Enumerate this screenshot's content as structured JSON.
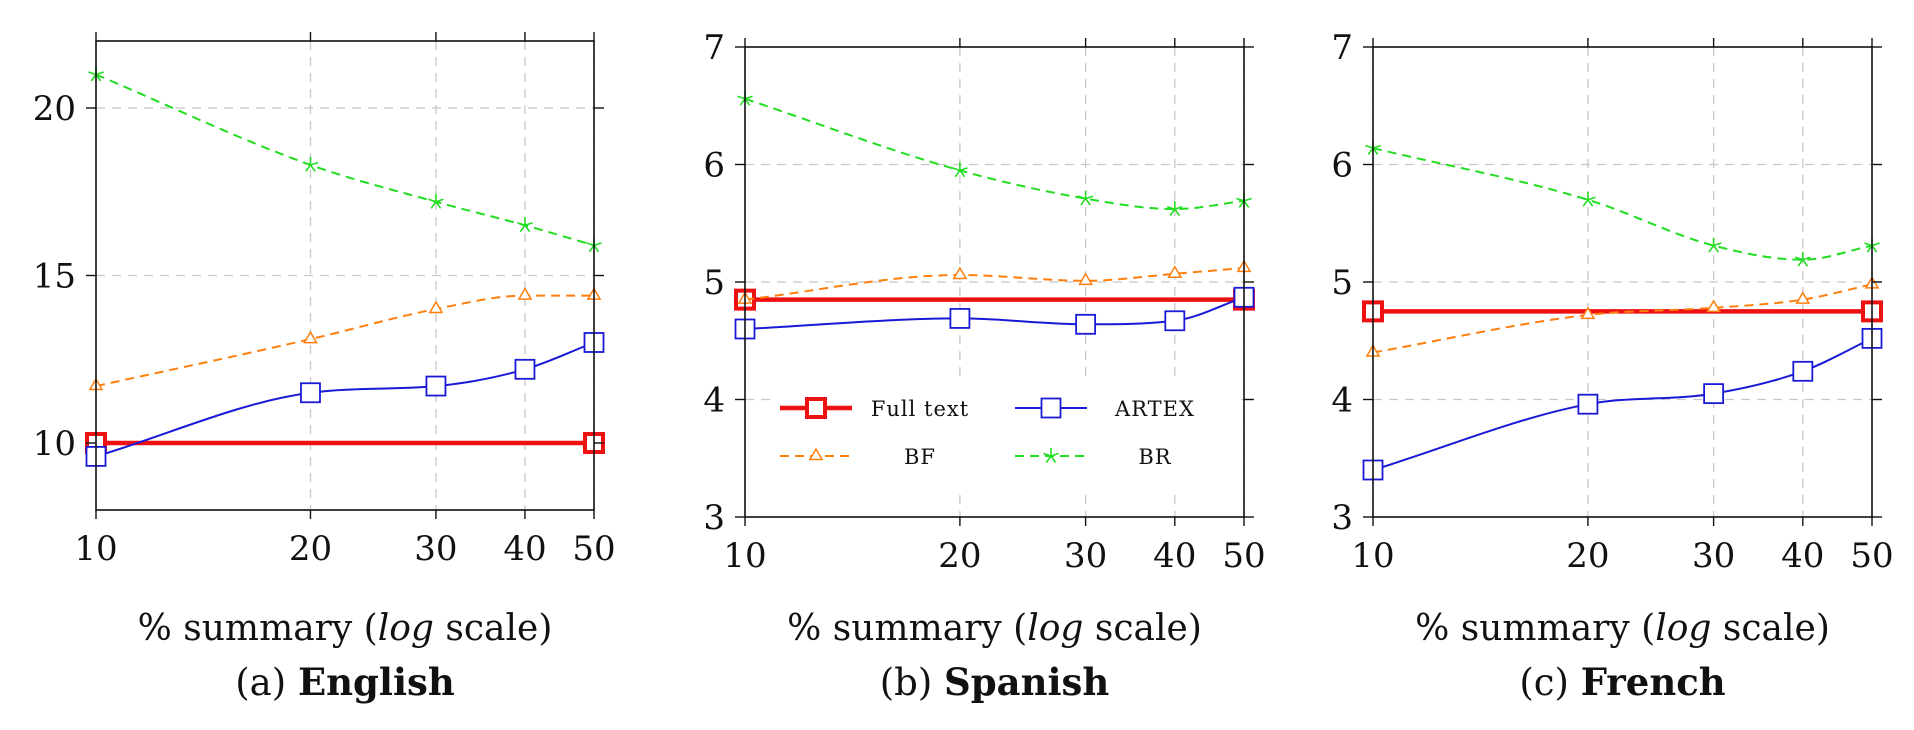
{
  "chart_data": [
    {
      "type": "line",
      "caption": {
        "prefix": "(a)",
        "language": "English"
      },
      "xlabel": {
        "pre": "% summary (",
        "emph": "log",
        "post": " scale)"
      },
      "x": [
        10,
        20,
        30,
        40,
        50
      ],
      "xscale": "log",
      "xlim": [
        10,
        50
      ],
      "ylim": [
        8,
        22
      ],
      "yticks": [
        10,
        15,
        20
      ],
      "series": [
        {
          "name": "Full text",
          "values": [
            10,
            10
          ],
          "x": [
            10,
            50
          ],
          "color": "#ee1111"
        },
        {
          "name": "ARTEX",
          "values": [
            9.6,
            11.5,
            11.7,
            12.2,
            13.0
          ],
          "color": "#1a1ad6"
        },
        {
          "name": "BF",
          "values": [
            11.7,
            13.1,
            14.0,
            14.4,
            14.4
          ],
          "color": "#ff7f0e"
        },
        {
          "name": "BR",
          "values": [
            21.0,
            18.3,
            17.2,
            16.5,
            15.9
          ],
          "color": "#22dd22"
        }
      ],
      "legend": null
    },
    {
      "type": "line",
      "caption": {
        "prefix": "(b)",
        "language": "Spanish"
      },
      "xlabel": {
        "pre": "% summary (",
        "emph": "log",
        "post": " scale)"
      },
      "x": [
        10,
        20,
        30,
        40,
        50
      ],
      "xscale": "log",
      "xlim": [
        10,
        50
      ],
      "ylim": [
        3,
        7
      ],
      "yticks": [
        3,
        4,
        5,
        6,
        7
      ],
      "series": [
        {
          "name": "Full text",
          "values": [
            4.85,
            4.85
          ],
          "x": [
            10,
            50
          ],
          "color": "#ee1111"
        },
        {
          "name": "ARTEX",
          "values": [
            4.6,
            4.69,
            4.64,
            4.67,
            4.87
          ],
          "color": "#1a1ad6"
        },
        {
          "name": "BF",
          "values": [
            4.85,
            5.06,
            5.01,
            5.07,
            5.12
          ],
          "color": "#ff7f0e"
        },
        {
          "name": "BR",
          "values": [
            6.56,
            5.95,
            5.71,
            5.62,
            5.69
          ],
          "color": "#22dd22"
        }
      ],
      "legend": {
        "position": "lower-left",
        "entries": [
          "Full text",
          "ARTEX",
          "BF",
          "BR"
        ]
      }
    },
    {
      "type": "line",
      "caption": {
        "prefix": "(c)",
        "language": "French"
      },
      "xlabel": {
        "pre": "% summary (",
        "emph": "log",
        "post": " scale)"
      },
      "x": [
        10,
        20,
        30,
        40,
        50
      ],
      "xscale": "log",
      "xlim": [
        10,
        50
      ],
      "ylim": [
        3,
        7
      ],
      "yticks": [
        3,
        4,
        5,
        6,
        7
      ],
      "series": [
        {
          "name": "Full text",
          "values": [
            4.75,
            4.75
          ],
          "x": [
            10,
            50
          ],
          "color": "#ee1111"
        },
        {
          "name": "ARTEX",
          "values": [
            3.4,
            3.96,
            4.05,
            4.24,
            4.52
          ],
          "color": "#1a1ad6"
        },
        {
          "name": "BF",
          "values": [
            4.4,
            4.72,
            4.78,
            4.85,
            4.98
          ],
          "color": "#ff7f0e"
        },
        {
          "name": "BR",
          "values": [
            6.14,
            5.7,
            5.31,
            5.19,
            5.31
          ],
          "color": "#22dd22"
        }
      ],
      "legend": null
    }
  ]
}
